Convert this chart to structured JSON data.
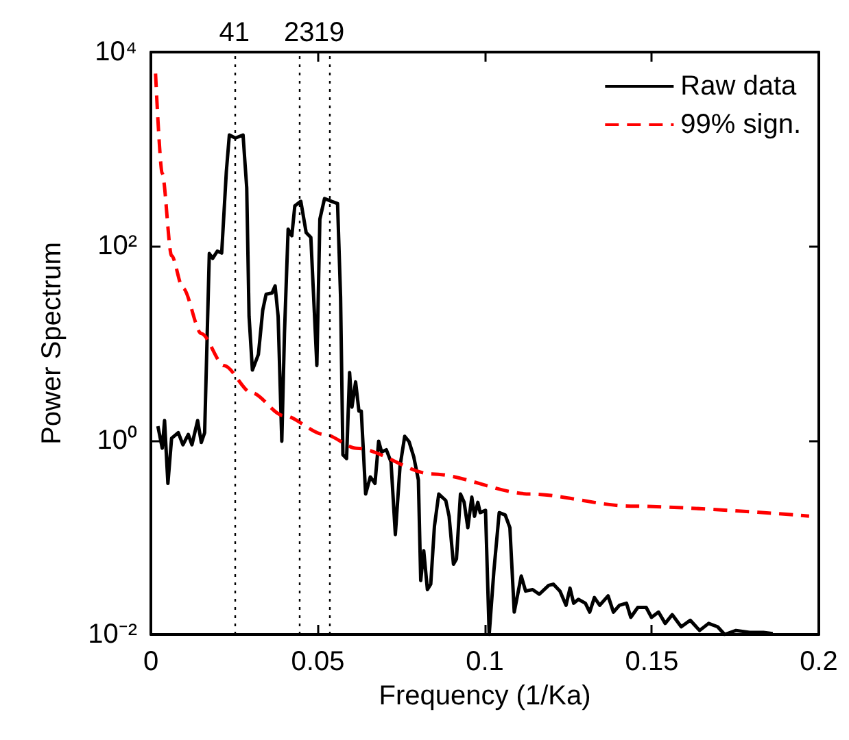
{
  "chart_data": {
    "type": "line",
    "xlabel": "Frequency (1/Ka)",
    "ylabel": "Power Spectrum",
    "log": "y",
    "grid": false,
    "legend": "top right",
    "marker": "none",
    "xlim": [
      0,
      0.2
    ],
    "xticks": [
      0,
      0.05,
      0.1,
      0.15,
      0.2
    ],
    "ylim": [
      0.01,
      10000
    ],
    "yticks": [
      {
        "value": 0.01,
        "label": "10⁻²"
      },
      {
        "value": 1,
        "label": "10⁰"
      },
      {
        "value": 100,
        "label": "10²"
      },
      {
        "value": 10000,
        "label": "10⁴"
      }
    ],
    "ref_lines": [
      {
        "axis": "x",
        "value": 0.025,
        "color": "#000000",
        "line_style": "dotted"
      },
      {
        "axis": "x",
        "value": 0.0444,
        "color": "#000000",
        "line_style": "dotted"
      },
      {
        "axis": "x",
        "value": 0.0534,
        "color": "#000000",
        "line_style": "dotted"
      }
    ],
    "annotations": [
      {
        "text": "41",
        "x": 0.025,
        "y": 10000
      },
      {
        "text": "23",
        "x": 0.0444,
        "y": 10000
      },
      {
        "text": "19",
        "x": 0.0534,
        "y": 10000
      }
    ],
    "series": [
      {
        "name": "Raw data",
        "color": "#000000",
        "line_style": "solid",
        "x": [
          0.0021,
          0.0034,
          0.0041,
          0.0051,
          0.0062,
          0.0082,
          0.0096,
          0.0112,
          0.0123,
          0.014,
          0.0151,
          0.0161,
          0.0175,
          0.0185,
          0.0199,
          0.0212,
          0.0226,
          0.0235,
          0.0253,
          0.0276,
          0.0287,
          0.0294,
          0.0304,
          0.0322,
          0.0335,
          0.0345,
          0.0363,
          0.0372,
          0.0381,
          0.0392,
          0.04,
          0.0411,
          0.0422,
          0.0431,
          0.0449,
          0.0465,
          0.0479,
          0.0497,
          0.0506,
          0.052,
          0.0541,
          0.0559,
          0.0568,
          0.0575,
          0.0586,
          0.0595,
          0.0602,
          0.0613,
          0.0623,
          0.063,
          0.0643,
          0.0657,
          0.0671,
          0.0682,
          0.0691,
          0.0705,
          0.0719,
          0.0732,
          0.0746,
          0.076,
          0.0773,
          0.0787,
          0.0801,
          0.0808,
          0.0817,
          0.0828,
          0.0838,
          0.0849,
          0.0862,
          0.0883,
          0.0893,
          0.0906,
          0.0915,
          0.0927,
          0.0938,
          0.0949,
          0.0961,
          0.0969,
          0.0979,
          0.0986,
          0.1002,
          0.1013,
          0.1027,
          0.1043,
          0.1061,
          0.1075,
          0.1088,
          0.1109,
          0.1122,
          0.1143,
          0.1163,
          0.1191,
          0.1205,
          0.1225,
          0.1243,
          0.1255,
          0.1266,
          0.128,
          0.1301,
          0.1314,
          0.1328,
          0.1344,
          0.1369,
          0.1385,
          0.1403,
          0.1424,
          0.1437,
          0.1458,
          0.1483,
          0.1499,
          0.152,
          0.154,
          0.1561,
          0.1588,
          0.1615,
          0.1643,
          0.167,
          0.1697,
          0.1718,
          0.1752,
          0.1793,
          0.1834,
          0.1862
        ],
        "values": [
          1.4,
          0.83,
          1.6,
          0.36,
          1.05,
          1.2,
          0.9,
          1.15,
          0.9,
          1.6,
          0.95,
          1.2,
          84,
          75,
          89,
          85,
          590,
          1400,
          1300,
          1400,
          400,
          19,
          5.3,
          7.7,
          22,
          32,
          33,
          39,
          19,
          0.98,
          12.6,
          150,
          128,
          260,
          290,
          138,
          123,
          5.9,
          190,
          310,
          290,
          275,
          30,
          0.71,
          0.65,
          5,
          2.2,
          4,
          2,
          2,
          0.28,
          0.42,
          0.36,
          0.98,
          0.76,
          0.8,
          0.6,
          0.107,
          0.54,
          1.1,
          0.97,
          0.68,
          0.39,
          0.036,
          0.073,
          0.029,
          0.033,
          0.13,
          0.28,
          0.24,
          0.165,
          0.053,
          0.06,
          0.28,
          0.23,
          0.126,
          0.26,
          0.165,
          0.23,
          0.18,
          0.19,
          0.01,
          0.045,
          0.18,
          0.17,
          0.126,
          0.017,
          0.04,
          0.028,
          0.029,
          0.026,
          0.032,
          0.033,
          0.028,
          0.02,
          0.03,
          0.021,
          0.023,
          0.021,
          0.017,
          0.024,
          0.02,
          0.025,
          0.017,
          0.02,
          0.021,
          0.015,
          0.019,
          0.019,
          0.015,
          0.017,
          0.013,
          0.016,
          0.012,
          0.014,
          0.011,
          0.013,
          0.012,
          0.01,
          0.011,
          0.0105,
          0.0105,
          0.0102
        ]
      },
      {
        "name": "99% sign.",
        "color": "#ff0000",
        "line_style": "dashed",
        "x": [
          0.0014,
          0.0034,
          0.0062,
          0.0096,
          0.0151,
          0.0219,
          0.0301,
          0.0397,
          0.052,
          0.0616,
          0.0842,
          0.1136,
          0.1437,
          0.1971
        ],
        "values": [
          6000,
          560,
          80,
          37,
          12.6,
          5.9,
          3.1,
          1.8,
          1.15,
          0.83,
          0.45,
          0.28,
          0.21,
          0.166
        ]
      }
    ]
  }
}
